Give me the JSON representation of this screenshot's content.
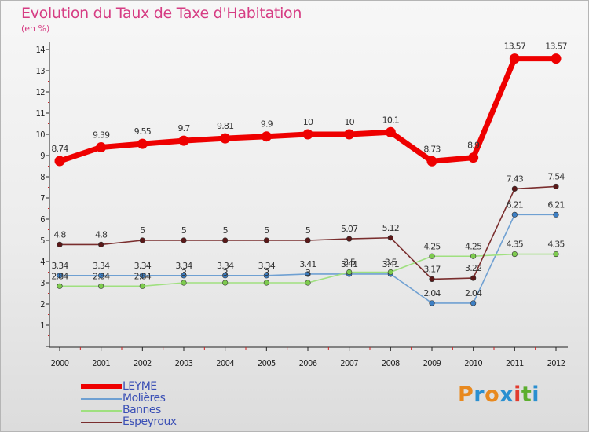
{
  "title": "Evolution du Taux de Taxe d'Habitation",
  "unit": "(en %)",
  "logo": "Proxiti",
  "logo_colors": [
    "#e8891f",
    "#2a8fd0",
    "#e8891f",
    "#2a8fd0",
    "#e23b2e",
    "#5cae2f",
    "#2a8fd0"
  ],
  "chart_data": {
    "type": "line",
    "categories": [
      "2000",
      "2001",
      "2002",
      "2003",
      "2004",
      "2005",
      "2006",
      "2007",
      "2008",
      "2009",
      "2010",
      "2011",
      "2012"
    ],
    "ylim": [
      0,
      14
    ],
    "yticks": [
      1,
      2,
      3,
      4,
      5,
      6,
      7,
      8,
      9,
      10,
      11,
      12,
      13,
      14
    ],
    "grid": false,
    "legend_position": "bottom-left",
    "series": [
      {
        "name": "LEYME",
        "color": "#ee0000",
        "marker": "#ee0000",
        "thick": true,
        "values": [
          8.74,
          9.39,
          9.55,
          9.7,
          9.81,
          9.9,
          10.0,
          10.0,
          10.1,
          8.73,
          8.9,
          13.57,
          13.57
        ],
        "labels": [
          "8.74",
          "9.39",
          "9.55",
          "9.7",
          "9.81",
          "9.9",
          "10",
          "10",
          "10.1",
          "8.73",
          "8.9",
          "13.57",
          "13.57"
        ]
      },
      {
        "name": "Molières",
        "color": "#6fa0d2",
        "marker": "#3d7fc4",
        "thick": false,
        "values": [
          3.34,
          3.34,
          3.34,
          3.34,
          3.34,
          3.34,
          3.41,
          3.41,
          3.41,
          2.04,
          2.04,
          6.21,
          6.21
        ],
        "labels": [
          "3.34",
          "3.34",
          "3.34",
          "3.34",
          "3.34",
          "3.34",
          "3.41",
          "3.41",
          "3.41",
          "2.04",
          "2.04",
          "6.21",
          "6.21"
        ]
      },
      {
        "name": "Bannes",
        "color": "#9fe07f",
        "marker": "#7ecb4f",
        "thick": false,
        "values": [
          2.84,
          2.84,
          2.84,
          3.0,
          3.0,
          3.0,
          3.0,
          3.5,
          3.5,
          4.25,
          4.25,
          4.35,
          4.35
        ],
        "labels": [
          "2.84",
          "2.84",
          "2.84",
          "3",
          "3",
          "3",
          "3",
          "3.5",
          "3.5",
          "4.25",
          "4.25",
          "4.35",
          "4.35"
        ]
      },
      {
        "name": "Espeyroux",
        "color": "#7a2e2e",
        "marker": "#5a1818",
        "thick": false,
        "values": [
          4.8,
          4.8,
          5.0,
          5.0,
          5.0,
          5.0,
          5.0,
          5.07,
          5.12,
          3.17,
          3.22,
          7.43,
          7.54
        ],
        "labels": [
          "4.8",
          "4.8",
          "5",
          "5",
          "5",
          "5",
          "5",
          "5.07",
          "5.12",
          "3.17",
          "3.22",
          "7.43",
          "7.54"
        ]
      }
    ]
  }
}
